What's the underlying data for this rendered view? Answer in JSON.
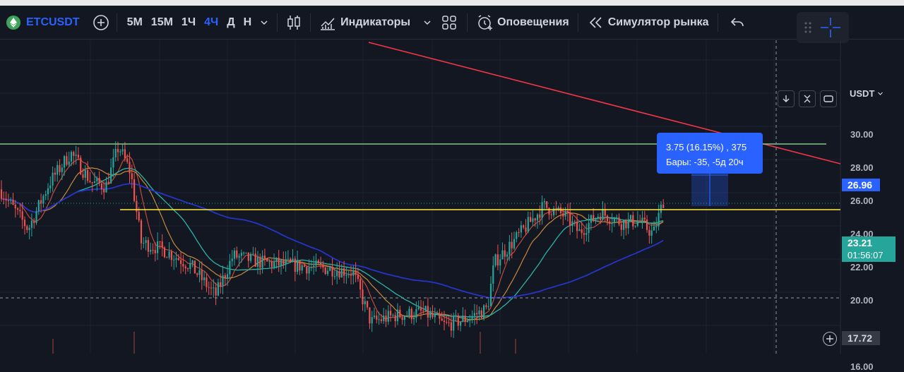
{
  "toolbar": {
    "symbol": "ETCUSDT",
    "timeframes": [
      "5М",
      "15М",
      "1Ч",
      "4Ч",
      "Д",
      "Н"
    ],
    "active_timeframe": "4Ч",
    "indicators_label": "Индикаторы",
    "alerts_label": "Оповещения",
    "simulator_label": "Симулятор рынка"
  },
  "price_axis": {
    "currency": "USDT",
    "labels": [
      "30.00",
      "28.00",
      "26.00",
      "24.00",
      "22.00",
      "20.00",
      "16.00"
    ],
    "current_price": "23.21",
    "countdown": "01:56:07",
    "target_price": "26.96",
    "crosshair_price": "17.72"
  },
  "measure_tooltip": {
    "line1": "3.75 (16.15%) , 375",
    "line2": "Бары: -35, -5д 20ч"
  },
  "colors": {
    "accent": "#2962ff",
    "up": "#26a69a",
    "down": "#ef5350",
    "current_price_bg": "#26a69a",
    "trendline": "#f23645",
    "horizontal_yellow": "#ffeb3b",
    "horizontal_green": "#81c784"
  }
}
